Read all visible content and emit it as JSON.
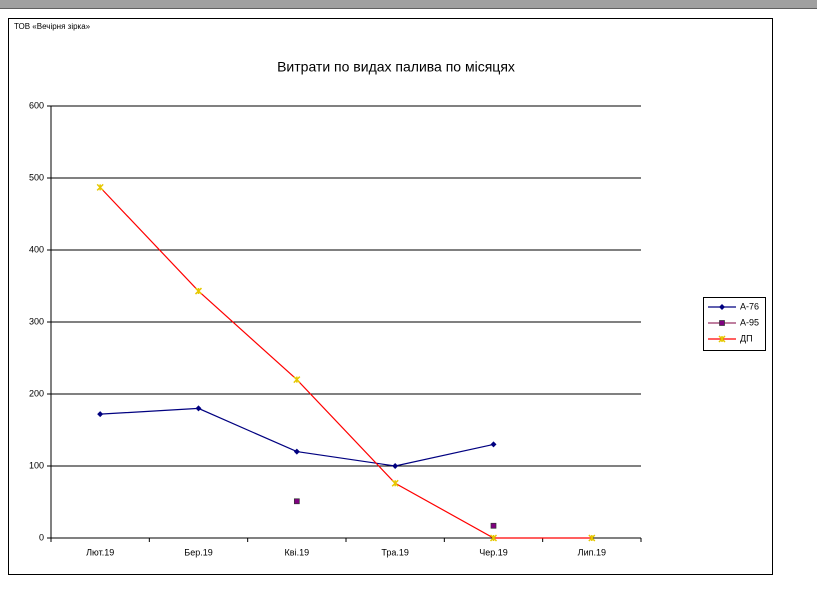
{
  "chart_data": {
    "type": "line",
    "company": "ТОВ «Вечірня зірка»",
    "title": "Витрати по видах палива по місяцях",
    "categories": [
      "Лют.19",
      "Бер.19",
      "Кві.19",
      "Тра.19",
      "Чер.19",
      "Лип.19"
    ],
    "series": [
      {
        "name": "А-76",
        "color": "#000080",
        "marker": "diamond",
        "marker_color": "#000080",
        "values": [
          172,
          180,
          120,
          100,
          130,
          null
        ]
      },
      {
        "name": "А-95",
        "color": "#993366",
        "marker": "square",
        "marker_color": "#800080",
        "values": [
          null,
          null,
          51,
          null,
          17,
          null
        ]
      },
      {
        "name": "ДП",
        "color": "#ff0000",
        "marker": "star",
        "marker_color": "#e6c800",
        "values": [
          487,
          343,
          220,
          76,
          0,
          0
        ]
      }
    ],
    "ylim": [
      0,
      600
    ],
    "yticks": [
      0,
      100,
      200,
      300,
      400,
      500,
      600
    ],
    "grid": true,
    "legend": "right"
  }
}
